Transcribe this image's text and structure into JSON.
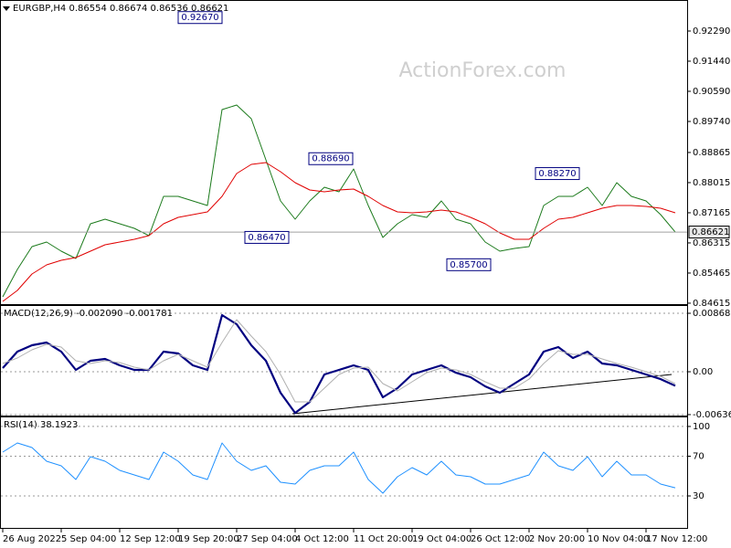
{
  "chart_data": [
    {
      "type": "line",
      "title": "EURGBP,H4  0.86554 0.86674 0.86536 0.86621",
      "watermark": "ActionForex.com",
      "series": [
        {
          "color": "#1b7a1b",
          "values": [
            0.84794,
            0.85567,
            0.86211,
            0.8634,
            0.86082,
            0.85876,
            0.86855,
            0.86984,
            0.86855,
            0.86726,
            0.8652,
            0.87628,
            0.87628,
            0.87499,
            0.8737,
            0.90075,
            0.90204,
            0.89817,
            0.88658,
            0.87499,
            0.86984,
            0.87499,
            0.87885,
            0.87757,
            0.88401,
            0.8737,
            0.86469,
            0.86855,
            0.87113,
            0.87035,
            0.87499,
            0.86984,
            0.86855,
            0.8634,
            0.86082,
            0.8616,
            0.86211,
            0.8737,
            0.87628,
            0.87628,
            0.87885,
            0.8737,
            0.88014,
            0.87628,
            0.87499,
            0.87113,
            0.86621
          ]
        },
        {
          "color": "#e00000",
          "values": [
            0.84666,
            0.84975,
            0.85438,
            0.85696,
            0.85825,
            0.85902,
            0.86082,
            0.86263,
            0.8634,
            0.86417,
            0.8652,
            0.86855,
            0.87035,
            0.87113,
            0.8719,
            0.87628,
            0.88272,
            0.88529,
            0.88581,
            0.88323,
            0.88014,
            0.87808,
            0.87757,
            0.87808,
            0.87834,
            0.87628,
            0.8737,
            0.8719,
            0.87164,
            0.8719,
            0.87241,
            0.8719,
            0.87035,
            0.86855,
            0.86597,
            0.86417,
            0.86417,
            0.86726,
            0.86984,
            0.87035,
            0.87164,
            0.87293,
            0.8737,
            0.8737,
            0.87344,
            0.87293,
            0.87164
          ]
        }
      ],
      "ylim": [
        0.84588,
        0.93088
      ],
      "yticks": [
        {
          "value": 0.9229,
          "label": "0.92290"
        },
        {
          "value": 0.9144,
          "label": "0.91440"
        },
        {
          "value": 0.9059,
          "label": "0.90590"
        },
        {
          "value": 0.8974,
          "label": "0.89740"
        },
        {
          "value": 0.88865,
          "label": "0.88865"
        },
        {
          "value": 0.88015,
          "label": "0.88015"
        },
        {
          "value": 0.87165,
          "label": "0.87165"
        },
        {
          "value": 0.86315,
          "label": "0.86315"
        },
        {
          "value": 0.85465,
          "label": "0.85465"
        },
        {
          "value": 0.84615,
          "label": "0.84615"
        }
      ],
      "grid": false,
      "price_line": {
        "value": 0.86621,
        "label": "0.86621"
      },
      "annotations": [
        {
          "value": 0.9267,
          "label": "0.92670"
        },
        {
          "value": 0.8869,
          "label": "0.88690"
        },
        {
          "value": 0.8647,
          "label": "0.86470"
        },
        {
          "value": 0.857,
          "label": "0.85700"
        },
        {
          "value": 0.8827,
          "label": "0.88270"
        }
      ]
    },
    {
      "type": "line",
      "title": "MACD(12,26,9) -0.002090 -0.001781",
      "series": [
        {
          "color": "#000080",
          "values": [
            0.00054,
            0.00299,
            0.00394,
            0.00434,
            0.00299,
            0.00027,
            0.00163,
            0.0019,
            0.00095,
            0.00027,
            0.00027,
            0.00299,
            0.00271,
            0.00095,
            0.00027,
            0.00841,
            0.00706,
            0.00394,
            0.00163,
            -0.00312,
            -0.00611,
            -0.00448,
            -0.00041,
            0.00027,
            0.00095,
            0.00027,
            -0.0038,
            -0.00244,
            -0.00041,
            0.00027,
            0.00095,
            -0.00014,
            -0.00081,
            -0.00217,
            -0.00312,
            -0.00176,
            -0.00041,
            0.00299,
            0.00366,
            0.00204,
            0.00299,
            0.00122,
            0.00095,
            0.00027,
            -0.00041,
            -0.00109,
            -0.00209
          ]
        },
        {
          "color": "#b0b0b0",
          "values": [
            0.00122,
            0.00204,
            0.00326,
            0.00407,
            0.00366,
            0.00163,
            0.00122,
            0.00163,
            0.00136,
            0.00068,
            0.00027,
            0.00163,
            0.00258,
            0.00163,
            0.00068,
            0.00434,
            0.00773,
            0.00529,
            0.00299,
            -0.00041,
            -0.00448,
            -0.00448,
            -0.00244,
            -0.00041,
            0.00054,
            0.00068,
            -0.00176,
            -0.00285,
            -0.00149,
            -0.00014,
            0.00054,
            0.00027,
            -0.00041,
            -0.00149,
            -0.00244,
            -0.00244,
            -0.00109,
            0.00122,
            0.00312,
            0.00258,
            0.00258,
            0.0019,
            0.00122,
            0.00068,
            0,
            -0.00068,
            -0.001781
          ]
        }
      ],
      "ylim": [
        -0.00651,
        0.0095
      ],
      "yticks": [
        {
          "value": 0.008686,
          "label": "0.008686"
        },
        {
          "value": 0,
          "label": "0.00"
        },
        {
          "value": -0.006366,
          "label": "-0.006366"
        }
      ],
      "grid": true
    },
    {
      "type": "line",
      "title": "RSI(14) 38.1923",
      "categories": [
        "26 Aug 2022",
        null,
        null,
        null,
        "5 Sep 04:00",
        null,
        null,
        null,
        "12 Sep 12:00",
        null,
        null,
        null,
        "19 Sep 20:00",
        null,
        null,
        null,
        "27 Sep 04:00",
        null,
        null,
        null,
        "4 Oct 12:00",
        null,
        null,
        null,
        "11 Oct 20:00",
        null,
        null,
        null,
        "19 Oct 04:00",
        null,
        null,
        null,
        "26 Oct 12:00",
        null,
        null,
        null,
        "2 Nov 20:00",
        null,
        null,
        null,
        "10 Nov 04:00",
        null,
        null,
        null,
        "17 Nov 12:00",
        null,
        null
      ],
      "series": [
        {
          "color": "#1e90ff",
          "values": [
            74.2,
            83.4,
            78.8,
            65,
            60.4,
            46.6,
            69.6,
            65,
            55.8,
            51.2,
            46.6,
            74.2,
            65,
            51.2,
            46.6,
            83.4,
            65,
            55.8,
            60.4,
            43.8,
            42,
            55.8,
            60.4,
            60.4,
            74.2,
            46.6,
            32.8,
            49.3,
            58.5,
            51.2,
            65,
            51.2,
            49.3,
            42,
            42,
            46.6,
            51.2,
            74.2,
            60.4,
            55.8,
            69.6,
            49.3,
            65,
            51.2,
            51.2,
            42,
            38.1923
          ]
        }
      ],
      "ylim": [
        -2.2,
        107.3
      ],
      "yticks": [
        100,
        70,
        30
      ],
      "grid": true
    }
  ]
}
